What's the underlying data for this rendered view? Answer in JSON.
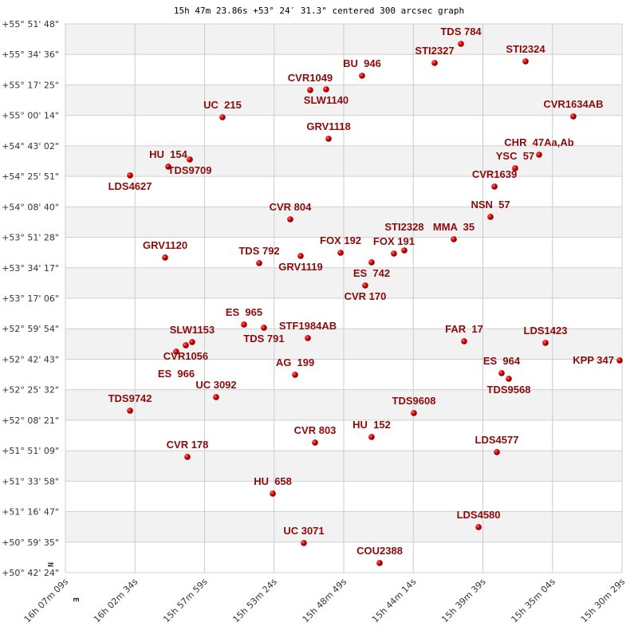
{
  "chart_data": {
    "type": "scatter",
    "title": "15h 47m 23.86s +53° 24′ 31.3\" centered 300 arcsec graph",
    "x_axis": {
      "quantity": "RA (hours)",
      "reversed": true,
      "range": [
        15.50806,
        16.11917
      ],
      "tick_labels": [
        "16h 07m 09s",
        "16h 02m 34s",
        "15h 57m 59s",
        "15h 53m 24s",
        "15h 48m 49s",
        "15h 44m 14s",
        "15h 39m 39s",
        "15h 35m 04s",
        "15h 30m 29s"
      ]
    },
    "y_axis": {
      "quantity": "Dec (degrees)",
      "range": [
        50.70667,
        55.86333
      ],
      "tick_labels": [
        "+55° 51' 48\"",
        "+55° 34' 36\"",
        "+55° 17' 25\"",
        "+55° 00' 14\"",
        "+54° 43' 02\"",
        "+54° 25' 51\"",
        "+54° 08' 40\"",
        "+53° 51' 28\"",
        "+53° 34' 17\"",
        "+53° 17' 06\"",
        "+52° 59' 54\"",
        "+52° 42' 43\"",
        "+52° 25' 32\"",
        "+52° 08' 21\"",
        "+51° 51' 09\"",
        "+51° 33' 58\"",
        "+51° 16' 47\"",
        "+50° 59' 35\"",
        "+50° 42' 24\""
      ]
    },
    "direction_labels": {
      "north": "N",
      "east": "E"
    },
    "grid": true,
    "striped_bands": true,
    "marker_color": "#d40000",
    "label_color": "#8b0b0b",
    "points": [
      {
        "name": "TDS 784",
        "ra": 15.6849,
        "dec": 55.676
      },
      {
        "name": "STI2327",
        "ra": 15.7138,
        "dec": 55.4961
      },
      {
        "name": "STI2324",
        "ra": 15.614,
        "dec": 55.5111
      },
      {
        "name": "BU  946",
        "ra": 15.7935,
        "dec": 55.3762
      },
      {
        "name": "CVR1049",
        "ra": 15.8504,
        "dec": 55.2413
      },
      {
        "name": "SLW1140",
        "ra": 15.8329,
        "dec": 55.2488
      },
      {
        "name": "UC  215",
        "ra": 15.9467,
        "dec": 54.9864
      },
      {
        "name": "CVR1634AB",
        "ra": 15.5615,
        "dec": 54.9939
      },
      {
        "name": "GRV1118",
        "ra": 15.8302,
        "dec": 54.7841
      },
      {
        "name": "CHR  47Aa,Ab",
        "ra": 15.5991,
        "dec": 54.6342
      },
      {
        "name": "YSC  57",
        "ra": 15.6254,
        "dec": 54.5068
      },
      {
        "name": "HU  154",
        "ra": 16.0062,
        "dec": 54.5218
      },
      {
        "name": "TDS9709",
        "ra": 15.9826,
        "dec": 54.5892
      },
      {
        "name": "LDS4627",
        "ra": 16.0482,
        "dec": 54.4393
      },
      {
        "name": "CVR1639",
        "ra": 15.6481,
        "dec": 54.3344
      },
      {
        "name": "NSN  57",
        "ra": 15.6525,
        "dec": 54.0496
      },
      {
        "name": "CVR 804",
        "ra": 15.8723,
        "dec": 54.0271
      },
      {
        "name": "MMA  35",
        "ra": 15.6928,
        "dec": 53.8397
      },
      {
        "name": "GRV1120",
        "ra": 16.0097,
        "dec": 53.6674
      },
      {
        "name": "TDS 792",
        "ra": 15.9064,
        "dec": 53.6149
      },
      {
        "name": "GRV1119",
        "ra": 15.8609,
        "dec": 53.6823
      },
      {
        "name": "FOX 192",
        "ra": 15.8171,
        "dec": 53.7123
      },
      {
        "name": "ES  742",
        "ra": 15.783,
        "dec": 53.6224
      },
      {
        "name": "FOX 191",
        "ra": 15.7585,
        "dec": 53.7048
      },
      {
        "name": "STI2328",
        "ra": 15.7471,
        "dec": 53.7348
      },
      {
        "name": "CVR 170",
        "ra": 15.79,
        "dec": 53.405
      },
      {
        "name": "ES  965",
        "ra": 15.9231,
        "dec": 53.0378
      },
      {
        "name": "TDS 791",
        "ra": 15.9012,
        "dec": 53.0078
      },
      {
        "name": "STF1984AB",
        "ra": 15.853,
        "dec": 52.9104
      },
      {
        "name": "SLW1153",
        "ra": 15.98,
        "dec": 52.8729
      },
      {
        "name": "CVR1056",
        "ra": 15.987,
        "dec": 52.8429
      },
      {
        "name": "ES  966",
        "ra": 15.9975,
        "dec": 52.783
      },
      {
        "name": "FAR  17",
        "ra": 15.6814,
        "dec": 52.8804
      },
      {
        "name": "LDS1423",
        "ra": 15.5921,
        "dec": 52.8654
      },
      {
        "name": "KPP 347",
        "ra": 15.5107,
        "dec": 52.7005
      },
      {
        "name": "AG  199",
        "ra": 15.867,
        "dec": 52.5656
      },
      {
        "name": "ES  964",
        "ra": 15.6403,
        "dec": 52.5806
      },
      {
        "name": "TDS9568",
        "ra": 15.6324,
        "dec": 52.5281
      },
      {
        "name": "UC 3092",
        "ra": 15.9537,
        "dec": 52.3558
      },
      {
        "name": "TDS9742",
        "ra": 16.0482,
        "dec": 52.2284
      },
      {
        "name": "TDS9608",
        "ra": 15.7366,
        "dec": 52.2059
      },
      {
        "name": "HU  152",
        "ra": 15.783,
        "dec": 51.981
      },
      {
        "name": "CVR 803",
        "ra": 15.8451,
        "dec": 51.9286
      },
      {
        "name": "LDS4577",
        "ra": 15.6455,
        "dec": 51.8386
      },
      {
        "name": "CVR 178",
        "ra": 15.9852,
        "dec": 51.7937
      },
      {
        "name": "HU  658",
        "ra": 15.8915,
        "dec": 51.4489
      },
      {
        "name": "LDS4580",
        "ra": 15.6656,
        "dec": 51.1341
      },
      {
        "name": "UC 3071",
        "ra": 15.8574,
        "dec": 50.9842
      },
      {
        "name": "COU2388",
        "ra": 15.7742,
        "dec": 50.7968
      }
    ]
  }
}
